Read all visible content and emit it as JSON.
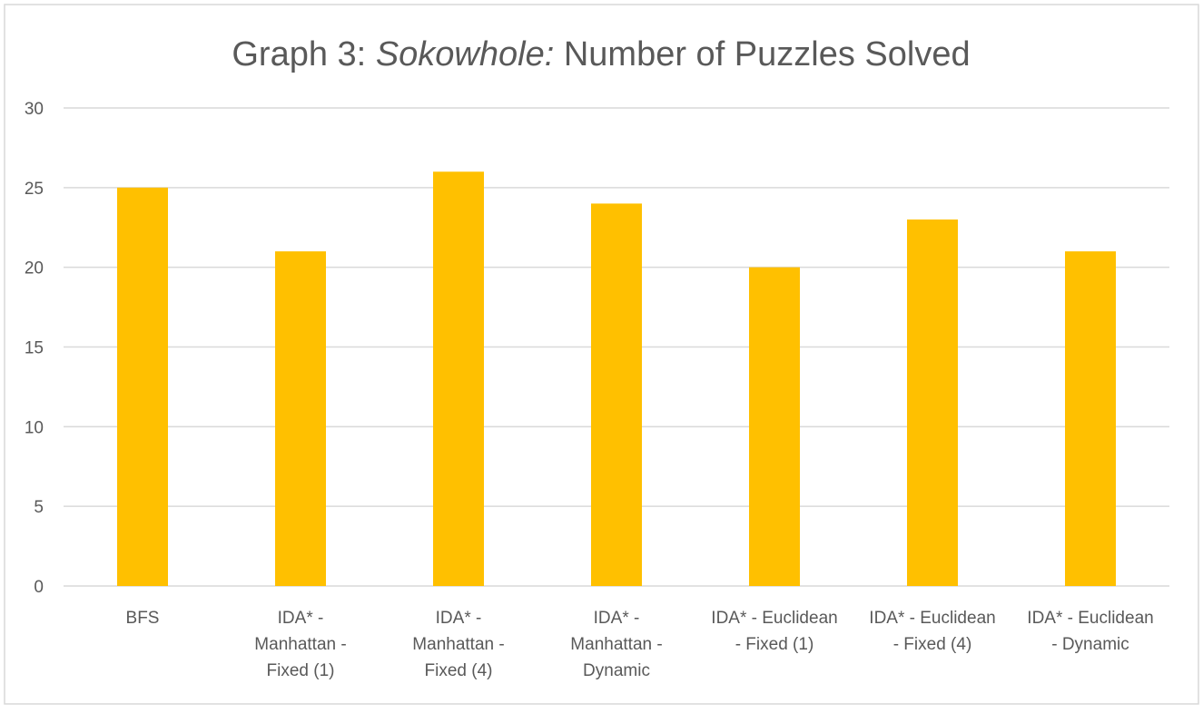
{
  "chart_data": {
    "type": "bar",
    "title": "Graph 3:",
    "title_italic": "Sokowhole:",
    "title_rest": "Number of Puzzles Solved",
    "xlabel": "",
    "ylabel": "",
    "categories": [
      "BFS",
      "IDA* - Manhattan - Fixed (1)",
      "IDA* - Manhattan - Fixed (4)",
      "IDA* - Manhattan - Dynamic",
      "IDA* - Euclidean - Fixed (1)",
      "IDA* - Euclidean - Fixed (4)",
      "IDA* - Euclidean - Dynamic"
    ],
    "category_lines": [
      [
        "BFS"
      ],
      [
        "IDA* -",
        "Manhattan -",
        "Fixed (1)"
      ],
      [
        "IDA* -",
        "Manhattan -",
        "Fixed (4)"
      ],
      [
        "IDA* -",
        "Manhattan -",
        "Dynamic"
      ],
      [
        "IDA* - Euclidean",
        "- Fixed (1)"
      ],
      [
        "IDA* - Euclidean",
        "- Fixed (4)"
      ],
      [
        "IDA* - Euclidean",
        "- Dynamic"
      ]
    ],
    "values": [
      25,
      21,
      26,
      24,
      20,
      23,
      21
    ],
    "ylim": [
      0,
      30
    ],
    "yticks": [
      "0",
      "5",
      "10",
      "15",
      "20",
      "25",
      "30"
    ],
    "grid": true,
    "legend": "none",
    "bar_color": "#FFC000",
    "grid_color": "#D9D9D9",
    "text_color": "#595959"
  }
}
